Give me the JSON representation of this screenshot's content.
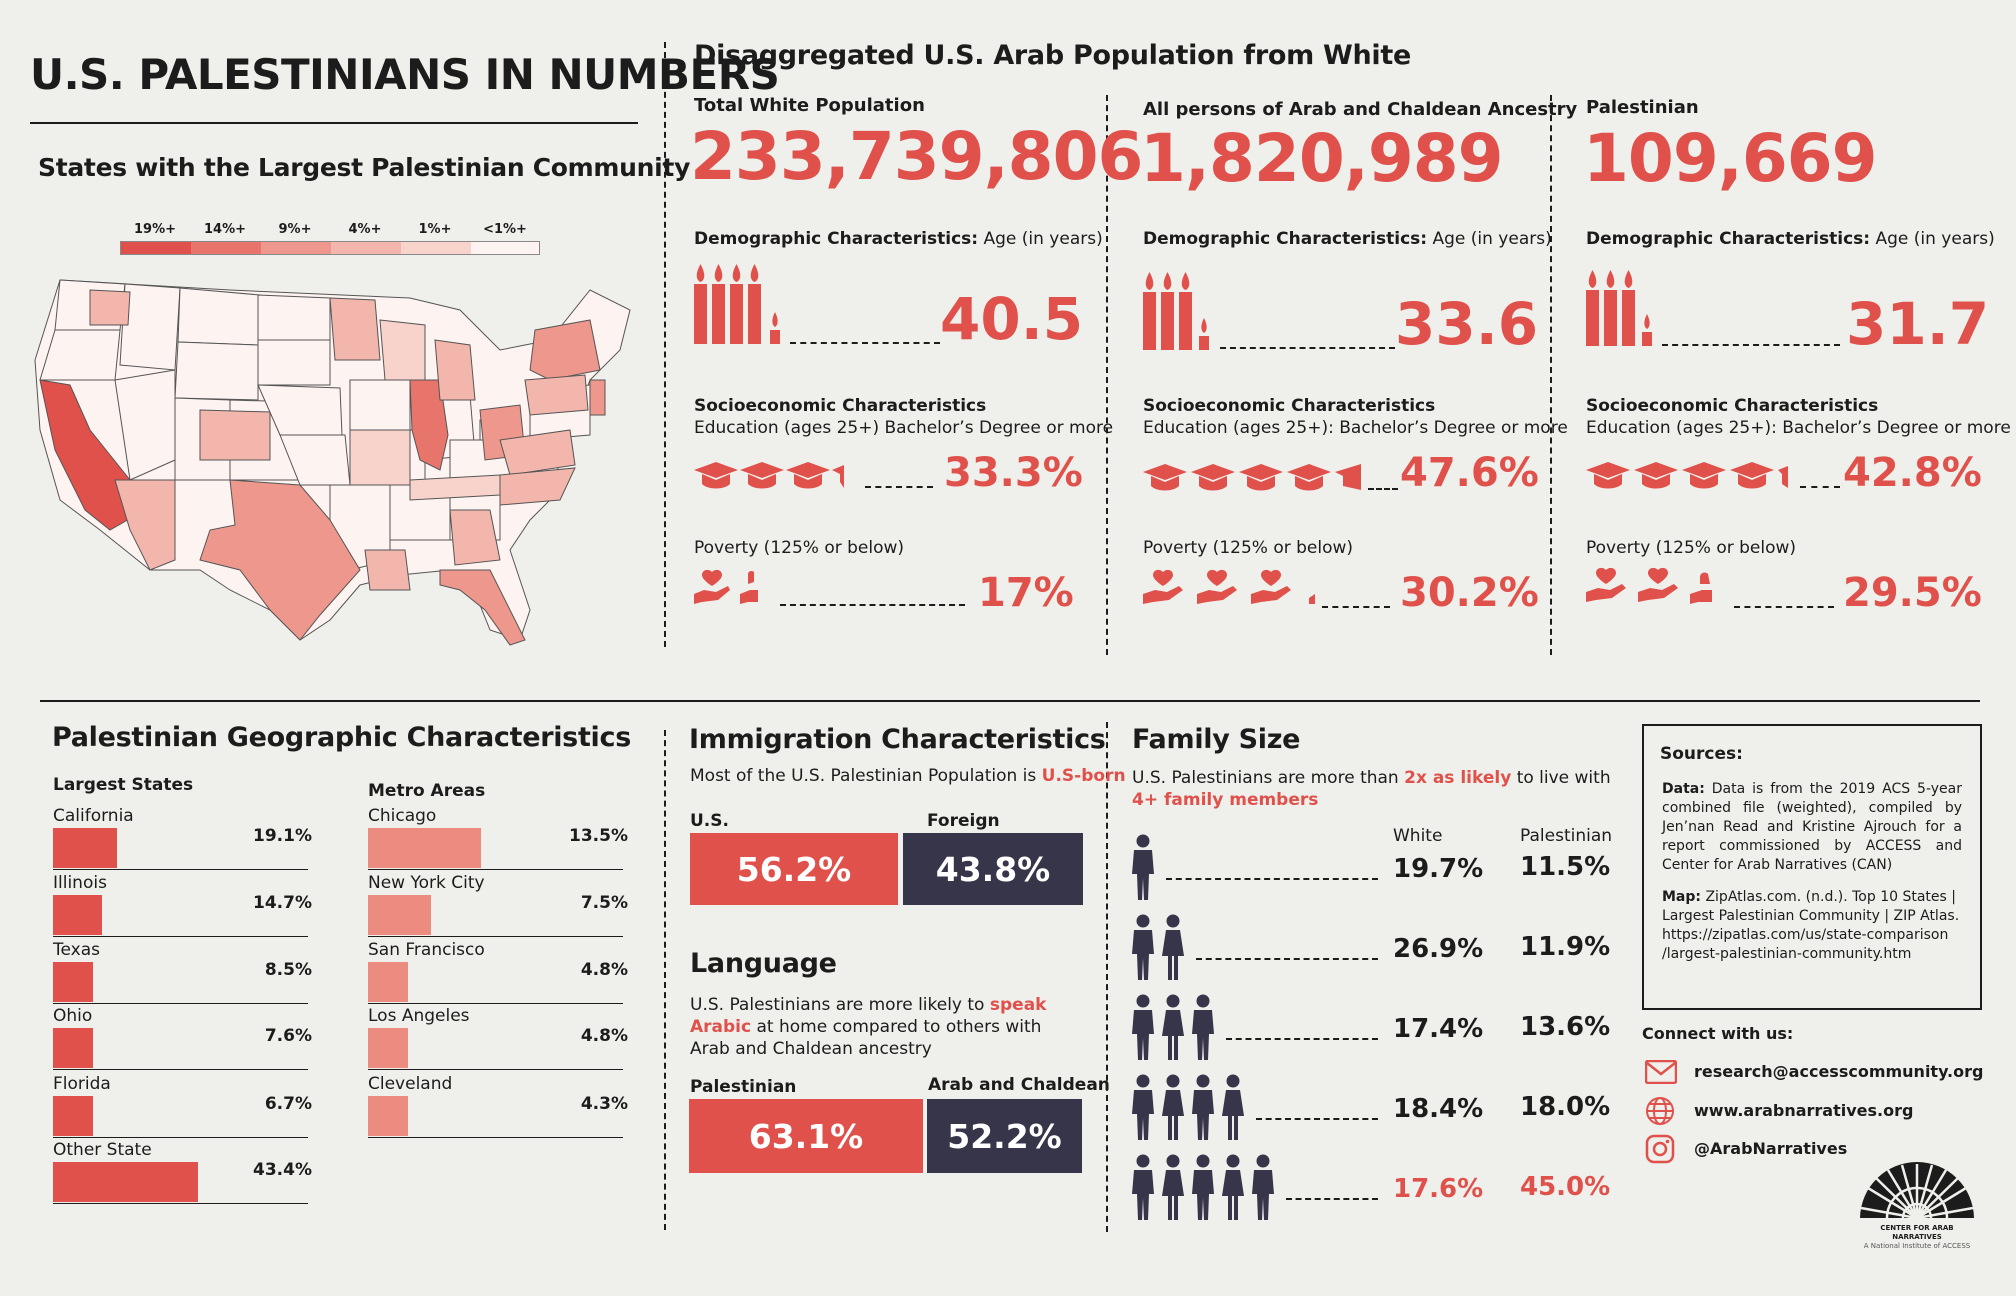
{
  "header": {
    "title": "U.S. PALESTINIANS IN NUMBERS"
  },
  "map": {
    "title": "States with the Largest Palestinian Community",
    "legend": [
      "19%+",
      "14%+",
      "9%+",
      "4%+",
      "1%+",
      "<1%+"
    ],
    "legend_colors": [
      "#e0514b",
      "#e8756c",
      "#ee978d",
      "#f2b6ac",
      "#f7d3cc",
      "#fdf3f1"
    ]
  },
  "disaggregated": {
    "title": "Disaggregated U.S. Arab Population from White",
    "columns": [
      {
        "group": "Total White Population",
        "total": "233,739,806",
        "age_label_bold": "Demographic Characteristics:",
        "age_label": "Age (in years)",
        "age": "40.5",
        "socio_title": "Socioeconomic Characteristics",
        "edu_label": "Education (ages 25+) Bachelor’s Degree or more",
        "edu": "33.3%",
        "poverty_label": "Poverty (125% or below)",
        "poverty": "17%"
      },
      {
        "group": "All persons of Arab and Chaldean Ancestry",
        "total": "1,820,989",
        "age_label_bold": "Demographic Characteristics:",
        "age_label": "Age (in years)",
        "age": "33.6",
        "socio_title": "Socioeconomic Characteristics",
        "edu_label": "Education (ages 25+): Bachelor’s Degree or more",
        "edu": "47.6%",
        "poverty_label": "Poverty (125% or below)",
        "poverty": "30.2%"
      },
      {
        "group": "Palestinian",
        "total": "109,669",
        "age_label_bold": "Demographic Characteristics:",
        "age_label": "Age (in years)",
        "age": "31.7",
        "socio_title": "Socioeconomic Characteristics",
        "edu_label": "Education (ages 25+): Bachelor’s Degree or more",
        "edu": "42.8%",
        "poverty_label": "Poverty (125% or below)",
        "poverty": "29.5%"
      }
    ]
  },
  "geo": {
    "title": "Palestinian Geographic Characteristics",
    "states_header": "Largest States",
    "metros_header": "Metro Areas",
    "states": [
      {
        "name": "California",
        "pct": "19.1%",
        "value": 19.1
      },
      {
        "name": "Illinois",
        "pct": "14.7%",
        "value": 14.7
      },
      {
        "name": "Texas",
        "pct": "8.5%",
        "value": 8.5
      },
      {
        "name": "Ohio",
        "pct": "7.6%",
        "value": 7.6
      },
      {
        "name": "Florida",
        "pct": "6.7%",
        "value": 6.7
      },
      {
        "name": "Other State",
        "pct": "43.4%",
        "value": 43.4
      }
    ],
    "metros": [
      {
        "name": "Chicago",
        "pct": "13.5%",
        "value": 13.5
      },
      {
        "name": "New York City",
        "pct": "7.5%",
        "value": 7.5
      },
      {
        "name": "San Francisco",
        "pct": "4.8%",
        "value": 4.8
      },
      {
        "name": "Los Angeles",
        "pct": "4.8%",
        "value": 4.8
      },
      {
        "name": "Cleveland",
        "pct": "4.3%",
        "value": 4.3
      }
    ]
  },
  "immigration": {
    "title": "Immigration Characteristics",
    "text_pre": "Most of the U.S. Palestinian Population is",
    "text_em": "U.S-born",
    "us_label": "U.S.",
    "foreign_label": "Foreign",
    "us_value": "56.2%",
    "foreign_value": "43.8%"
  },
  "language": {
    "title": "Language",
    "text_pre": "U.S. Palestinians are more likely to",
    "text_em": "speak Arabic",
    "text_post": "at home compared to others with Arab and Chaldean ancestry",
    "pal_label": "Palestinian",
    "arab_label": "Arab and Chaldean",
    "pal_value": "63.1%",
    "arab_value": "52.2%"
  },
  "family": {
    "title": "Family Size",
    "text_pre": "U.S. Palestinians are more than",
    "text_em1": "2x as likely",
    "text_mid": "to live with",
    "text_em2": "4+ family members",
    "col_white": "White",
    "col_pal": "Palestinian",
    "rows": [
      {
        "people": 1,
        "white": "19.7%",
        "pal": "11.5%"
      },
      {
        "people": 2,
        "white": "26.9%",
        "pal": "11.9%"
      },
      {
        "people": 3,
        "white": "17.4%",
        "pal": "13.6%"
      },
      {
        "people": 4,
        "white": "18.4%",
        "pal": "18.0%"
      },
      {
        "people": 5,
        "white": "17.6%",
        "pal": "45.0%"
      }
    ]
  },
  "sources": {
    "title": "Sources:",
    "data_label": "Data:",
    "data_text": "Data is from the 2019 ACS 5-year combined file (weighted), compiled by Jen’nan Read and Kristine Ajrouch for a report commissioned by ACCESS and Center for Arab Narratives (CAN)",
    "map_label": "Map:",
    "map_text": "ZipAtlas.com. (n.d.). Top 10 States | Largest Palestinian Community | ZIP Atlas. https://zipatlas.com/us/state-comparison /largest-palestinian-community.htm"
  },
  "connect": {
    "title": "Connect with us:",
    "email": "research@accesscommunity.org",
    "web": "www.arabnarratives.org",
    "social": "@ArabNarratives"
  },
  "logo": {
    "line1": "CENTER FOR ARAB NARRATIVES",
    "line2": "A National Institute of ACCESS"
  }
}
